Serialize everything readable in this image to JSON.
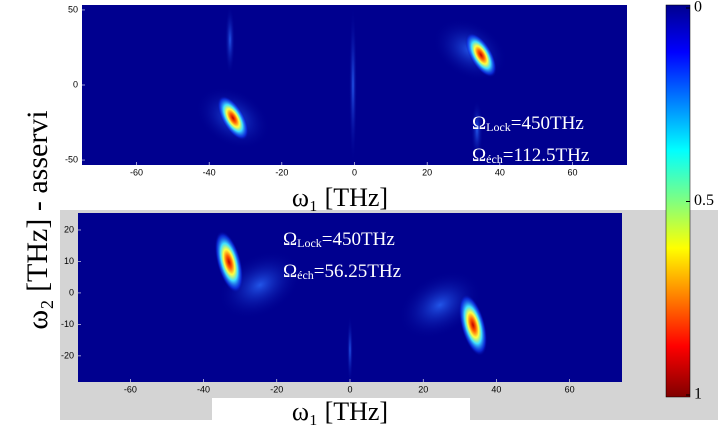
{
  "chart_data": [
    {
      "type": "heatmap",
      "xlabel": "ω₁ [THz]",
      "xlim": [
        -75,
        75
      ],
      "ylim": [
        -53.3,
        53.3
      ],
      "xticks": [
        -60,
        -40,
        -20,
        0,
        20,
        40,
        60
      ],
      "yticks": [
        -50,
        0,
        50
      ],
      "annotations": [
        {
          "symbol": "Ω",
          "subscript": "Lock",
          "text": "=450THz"
        },
        {
          "symbol": "Ω",
          "subscript": "éch",
          "text": "=112.5THz"
        }
      ]
    },
    {
      "type": "heatmap",
      "xlabel": "ω₁ [THz]",
      "xlim": [
        -74.3,
        74.3
      ],
      "ylim": [
        -28.3,
        25.4
      ],
      "xticks": [
        -60,
        -40,
        -20,
        0,
        20,
        40,
        60
      ],
      "yticks": [
        -20,
        -10,
        0,
        10,
        20
      ],
      "annotations": [
        {
          "symbol": "Ω",
          "subscript": "Lock",
          "text": "=450THz"
        },
        {
          "symbol": "Ω",
          "subscript": "éch",
          "text": "=56.25THz"
        }
      ]
    }
  ],
  "ylabel": "ω₂ [THz] - asservi",
  "colorbar": {
    "lim": [
      0,
      1
    ],
    "ticks": [
      0,
      0.5,
      1
    ],
    "colormap": "jet-reversed"
  }
}
